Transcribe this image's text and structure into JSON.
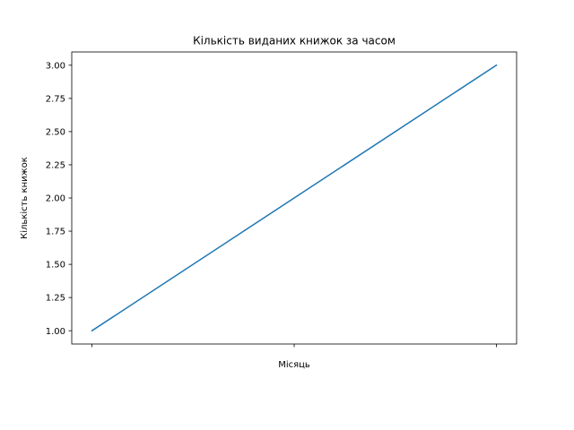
{
  "chart_data": {
    "type": "line",
    "title": "Кількість виданих книжок за часом",
    "xlabel": "Місяць",
    "ylabel": "Кількість книжок",
    "x": [
      0,
      1,
      2
    ],
    "x_tick_labels": [
      "",
      "",
      ""
    ],
    "series": [
      {
        "values": [
          1.0,
          2.0,
          3.0
        ],
        "color": "#1f77b4"
      }
    ],
    "xlim": [
      -0.1,
      2.1
    ],
    "ylim": [
      0.9,
      3.1
    ],
    "y_ticks": [
      1.0,
      1.25,
      1.5,
      1.75,
      2.0,
      2.25,
      2.5,
      2.75,
      3.0
    ],
    "y_tick_labels": [
      "1.00",
      "1.25",
      "1.50",
      "1.75",
      "2.00",
      "2.25",
      "2.50",
      "2.75",
      "3.00"
    ],
    "grid": false,
    "legend": "none"
  }
}
